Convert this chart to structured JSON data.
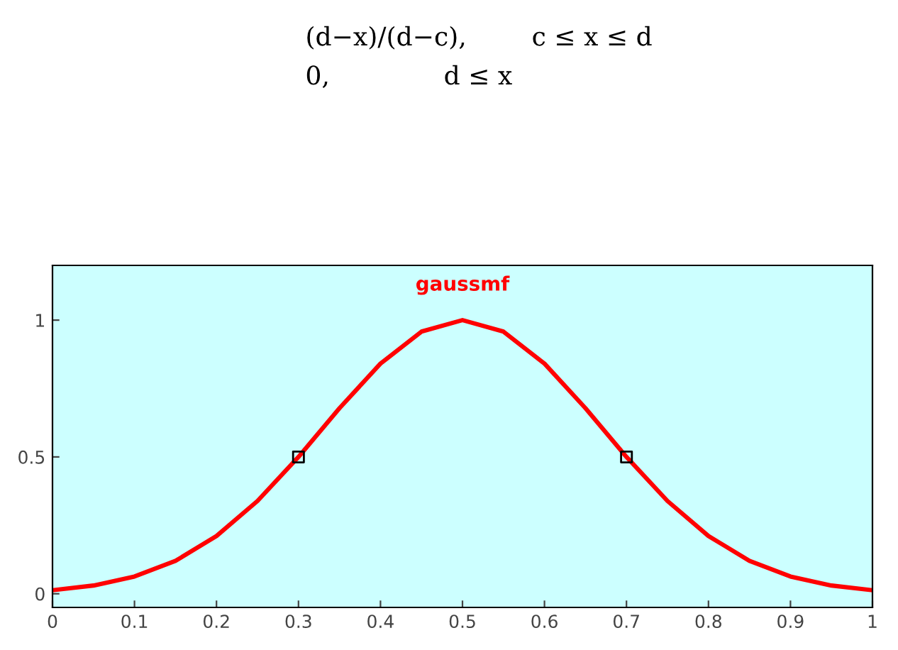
{
  "chart_data": {
    "type": "line",
    "title": "gaussmf",
    "annotations": [
      "(d−x)/(d−c),        c ≤ x ≤ d",
      "0,              d ≤ x"
    ],
    "x": [
      0,
      0.05,
      0.1,
      0.15,
      0.2,
      0.25,
      0.3,
      0.35,
      0.4,
      0.45,
      0.5,
      0.55,
      0.6,
      0.65,
      0.7,
      0.75,
      0.8,
      0.85,
      0.9,
      0.95,
      1
    ],
    "series": [
      {
        "color": "#ff0000",
        "values": [
          0.013,
          0.03,
          0.063,
          0.12,
          0.211,
          0.339,
          0.5,
          0.678,
          0.841,
          0.958,
          1,
          0.958,
          0.841,
          0.678,
          0.5,
          0.339,
          0.211,
          0.12,
          0.063,
          0.03,
          0.013
        ]
      },
      {
        "type": "scatter",
        "color": "#000000",
        "marker": "square",
        "x": [
          0.3,
          0.7
        ],
        "values": [
          0.5,
          0.5
        ]
      }
    ],
    "xlim": [
      0,
      1
    ],
    "ylim": [
      -0.05,
      1.2
    ],
    "xticks": [
      0,
      0.1,
      0.2,
      0.3,
      0.4,
      0.5,
      0.6,
      0.7,
      0.8,
      0.9,
      1
    ],
    "yticks": [
      0,
      0.5,
      1
    ],
    "grid": false
  }
}
